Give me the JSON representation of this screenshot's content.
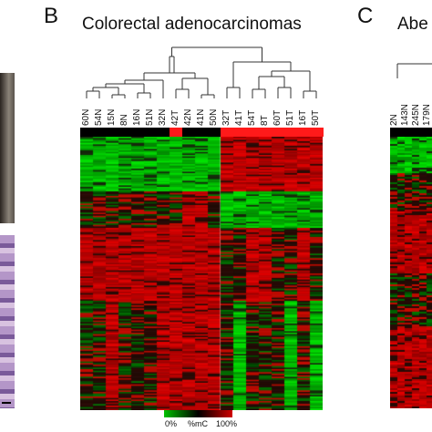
{
  "panels": [
    {
      "letter": "B",
      "title": "Colorectal adenocarcinomas"
    },
    {
      "letter": "C",
      "title": "Abe"
    }
  ],
  "heatmap_b": {
    "columns": [
      "60N",
      "54N",
      "15N",
      "8N",
      "16N",
      "51N",
      "32N",
      "42T",
      "42N",
      "41N",
      "50N",
      "32T",
      "41T",
      "54T",
      "8T",
      "60T",
      "51T",
      "16T",
      "50T"
    ],
    "column_group": [
      "N",
      "N",
      "N",
      "N",
      "N",
      "N",
      "N",
      "T",
      "N",
      "N",
      "N",
      "T",
      "T",
      "T",
      "T",
      "T",
      "T",
      "T",
      "T"
    ],
    "row_blocks": [
      {
        "rows": 6,
        "pattern": [
          "green",
          "green",
          "green",
          "green",
          "green",
          "green",
          "green",
          "green",
          "green",
          "green",
          "green",
          "red",
          "red",
          "red",
          "red",
          "red",
          "red",
          "red",
          "red"
        ]
      },
      {
        "rows": 4,
        "pattern": [
          "dark",
          "dark",
          "dark",
          "dark",
          "dark",
          "dark",
          "dark",
          "dark",
          "red",
          "red",
          "dark",
          "green",
          "green",
          "green",
          "green",
          "green",
          "green",
          "green",
          "green"
        ]
      },
      {
        "rows": 8,
        "pattern": [
          "red",
          "red",
          "red",
          "red",
          "red",
          "red",
          "red",
          "red",
          "red",
          "red",
          "red",
          "dark",
          "dark",
          "red",
          "red",
          "dark",
          "dark",
          "red",
          "dark"
        ]
      },
      {
        "rows": 12,
        "pattern": [
          "dark",
          "dark",
          "red",
          "dark",
          "dark",
          "dark",
          "red",
          "red",
          "red",
          "red",
          "red",
          "dark",
          "green",
          "dark",
          "dark",
          "dark",
          "green",
          "dark",
          "green"
        ]
      }
    ]
  },
  "panel_c_columns": [
    "2N",
    "143N",
    "245N",
    "179N"
  ],
  "scale": {
    "low": "0%",
    "mid": "%mC",
    "high": "100%"
  },
  "colors": {
    "normal_bar": "#000000",
    "tumor_bar": "#ff1a1a",
    "green": "#00b400",
    "red": "#c80000",
    "dark": "#1a0a06"
  }
}
